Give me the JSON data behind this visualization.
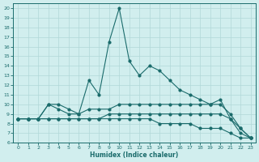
{
  "xlabel": "Humidex (Indice chaleur)",
  "xlim": [
    -0.5,
    23.5
  ],
  "ylim": [
    6,
    20.5
  ],
  "xticks": [
    0,
    1,
    2,
    3,
    4,
    5,
    6,
    7,
    8,
    9,
    10,
    11,
    12,
    13,
    14,
    15,
    16,
    17,
    18,
    19,
    20,
    21,
    22,
    23
  ],
  "yticks": [
    6,
    7,
    8,
    9,
    10,
    11,
    12,
    13,
    14,
    15,
    16,
    17,
    18,
    19,
    20
  ],
  "background_color": "#d1eeee",
  "grid_color": "#b0d8d8",
  "line_color": "#1a6b6b",
  "lines": [
    {
      "x": [
        0,
        1,
        2,
        3,
        4,
        5,
        6,
        7,
        8,
        9,
        10,
        11,
        12,
        13,
        14,
        15,
        16,
        17,
        18,
        19,
        20,
        21,
        22,
        23
      ],
      "y": [
        8.5,
        8.5,
        8.5,
        8.5,
        8.5,
        8.5,
        8.5,
        8.5,
        8.5,
        8.5,
        8.5,
        8.5,
        8.5,
        8.5,
        8.0,
        8.0,
        8.0,
        8.0,
        7.5,
        7.5,
        7.5,
        7.0,
        6.5,
        6.5
      ]
    },
    {
      "x": [
        0,
        1,
        2,
        3,
        4,
        5,
        6,
        7,
        8,
        9,
        10,
        11,
        12,
        13,
        14,
        15,
        16,
        17,
        18,
        19,
        20,
        21,
        22,
        23
      ],
      "y": [
        8.5,
        8.5,
        8.5,
        8.5,
        8.5,
        8.5,
        8.5,
        8.5,
        8.5,
        9.0,
        9.0,
        9.0,
        9.0,
        9.0,
        9.0,
        9.0,
        9.0,
        9.0,
        9.0,
        9.0,
        9.0,
        8.5,
        7.5,
        6.5
      ]
    },
    {
      "x": [
        0,
        1,
        2,
        3,
        4,
        5,
        6,
        7,
        8,
        9,
        10,
        11,
        12,
        13,
        14,
        15,
        16,
        17,
        18,
        19,
        20,
        21,
        22,
        23
      ],
      "y": [
        8.5,
        8.5,
        8.5,
        10.0,
        9.5,
        9.0,
        9.0,
        9.5,
        9.5,
        9.5,
        10.0,
        10.0,
        10.0,
        10.0,
        10.0,
        10.0,
        10.0,
        10.0,
        10.0,
        10.0,
        10.0,
        9.0,
        7.5,
        6.5
      ]
    },
    {
      "x": [
        0,
        1,
        2,
        3,
        4,
        5,
        6,
        7,
        8,
        9,
        10,
        11,
        12,
        13,
        14,
        15,
        16,
        17,
        18,
        19,
        20,
        21,
        22,
        23
      ],
      "y": [
        8.5,
        8.5,
        8.5,
        10.0,
        10.0,
        9.5,
        9.0,
        12.5,
        11.0,
        16.5,
        20.0,
        14.5,
        13.0,
        14.0,
        13.5,
        12.5,
        11.5,
        11.0,
        10.5,
        10.0,
        10.5,
        8.5,
        7.0,
        6.5
      ]
    }
  ]
}
